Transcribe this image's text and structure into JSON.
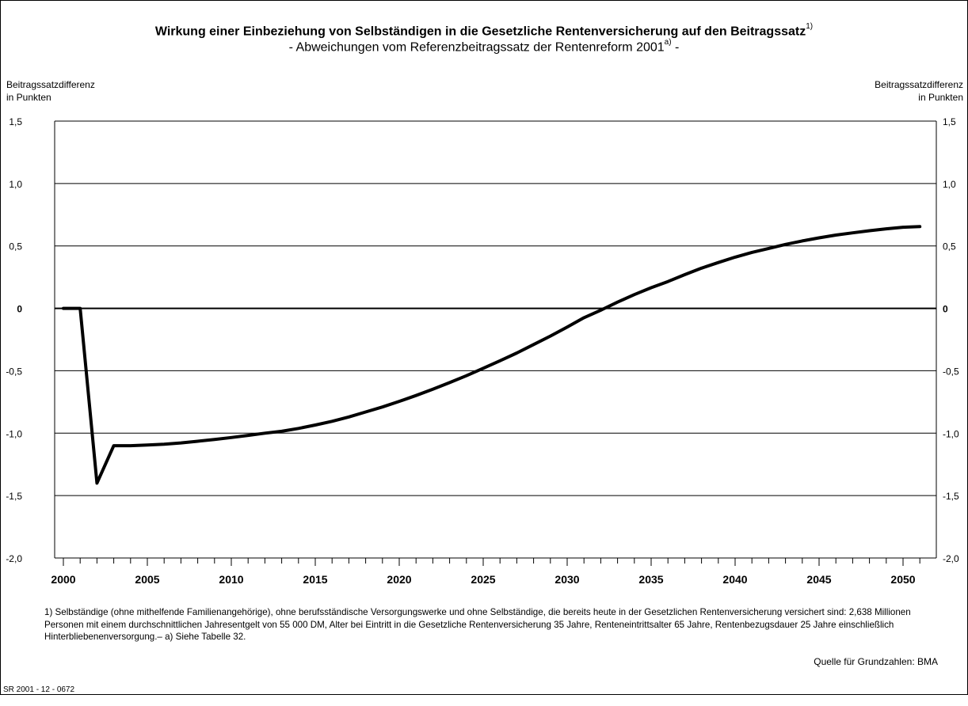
{
  "chart_data": {
    "type": "line",
    "title": "Wirkung einer Einbeziehung von Selbständigen in die Gesetzliche Rentenversicherung auf den Beitragssatz",
    "title_sup": "1)",
    "subtitle": "- Abweichungen vom Referenzbeitragssatz der Rentenreform 2001",
    "subtitle_sup": "a)",
    "subtitle_end": " -",
    "ylabel_left": [
      "Beitragssatzdifferenz",
      "in Punkten"
    ],
    "ylabel_right": [
      "Beitragssatzdifferenz",
      "in Punkten"
    ],
    "xlim": [
      2000,
      2051
    ],
    "ylim": [
      -2.0,
      1.5
    ],
    "x_ticks": [
      "2000",
      "2005",
      "2010",
      "2015",
      "2020",
      "2025",
      "2030",
      "2035",
      "2040",
      "2045",
      "2050"
    ],
    "y_ticks": [
      {
        "value": 1.5,
        "label": "1,5"
      },
      {
        "value": 1.0,
        "label": "1,0"
      },
      {
        "value": 0.5,
        "label": "0,5"
      },
      {
        "value": 0,
        "label": "0"
      },
      {
        "value": -0.5,
        "label": "-0,5"
      },
      {
        "value": -1.0,
        "label": "-1,0"
      },
      {
        "value": -1.5,
        "label": "-1,5"
      },
      {
        "value": -2.0,
        "label": "-2,0"
      }
    ],
    "grid": true,
    "series": [
      {
        "x": [
          2000,
          2001,
          2002,
          2003,
          2004,
          2005,
          2006,
          2007,
          2008,
          2009,
          2010,
          2011,
          2012,
          2013,
          2014,
          2015,
          2016,
          2017,
          2018,
          2019,
          2020,
          2021,
          2022,
          2023,
          2024,
          2025,
          2026,
          2027,
          2028,
          2029,
          2030,
          2031,
          2032,
          2033,
          2034,
          2035,
          2036,
          2037,
          2038,
          2039,
          2040,
          2041,
          2042,
          2043,
          2044,
          2045,
          2046,
          2047,
          2048,
          2049,
          2050,
          2051
        ],
        "values": [
          0,
          0,
          -1.4,
          -1.1,
          -1.1,
          -1.095,
          -1.088,
          -1.078,
          -1.065,
          -1.05,
          -1.035,
          -1.018,
          -1.0,
          -0.985,
          -0.962,
          -0.935,
          -0.905,
          -0.87,
          -0.83,
          -0.79,
          -0.745,
          -0.698,
          -0.648,
          -0.595,
          -0.54,
          -0.48,
          -0.42,
          -0.358,
          -0.29,
          -0.222,
          -0.15,
          -0.075,
          -0.015,
          0.05,
          0.11,
          0.165,
          0.215,
          0.27,
          0.322,
          0.367,
          0.41,
          0.448,
          0.48,
          0.512,
          0.54,
          0.565,
          0.587,
          0.605,
          0.622,
          0.637,
          0.65,
          0.655
        ]
      }
    ]
  },
  "footnote": "1) Selbständige (ohne mithelfende Familienangehörige), ohne berufsständische Versorgungswerke und ohne Selbständige, die bereits heute in der Gesetzlichen Rentenversicherung versichert sind: 2,638 Millionen Personen mit einem durchschnittlichen Jahresentgelt von 55 000 DM, Alter bei Eintritt in die Gesetzliche Rentenversicherung 35 Jahre, Renteneintrittsalter 65 Jahre, Rentenbezugsdauer 25 Jahre einschließlich Hinterbliebenenversorgung.– a) Siehe Tabelle 32.",
  "source": "Quelle für Grundzahlen: BMA",
  "code": "SR 2001 - 12 - 0672"
}
